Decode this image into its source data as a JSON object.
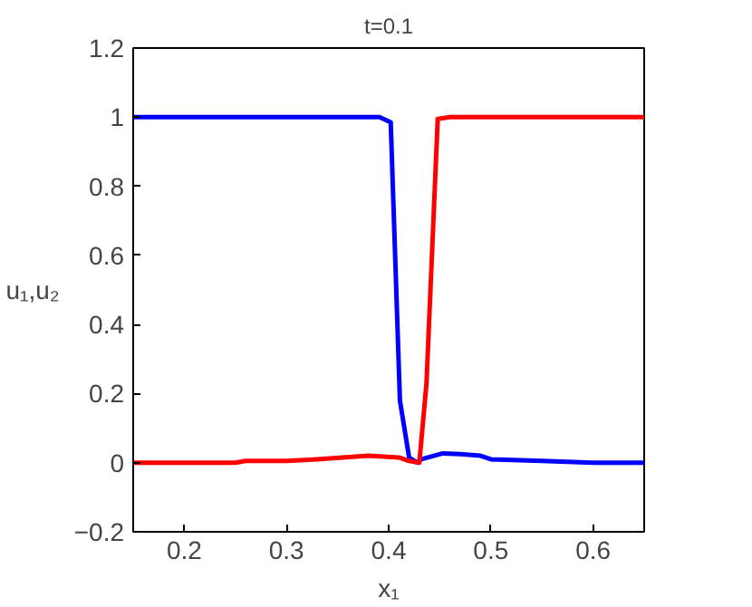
{
  "chart_data": {
    "type": "line",
    "title": "t=0.1",
    "xlabel": "x₁",
    "ylabel": "u₁,u₂",
    "xlim": [
      0.15,
      0.65
    ],
    "xticks": [
      0.2,
      0.3,
      0.4,
      0.5,
      0.6
    ],
    "ylim": [
      -0.2,
      1.2
    ],
    "yticks": [
      -0.2,
      0,
      0.2,
      0.4,
      0.6,
      0.8,
      1,
      1.2
    ],
    "grid": false,
    "line_style": "solid",
    "series": [
      {
        "color": "#0000ff",
        "x": [
          0.15,
          0.2,
          0.3,
          0.391,
          0.402,
          0.411,
          0.42,
          0.428,
          0.432,
          0.453,
          0.47,
          0.49,
          0.5,
          0.55,
          0.6,
          0.65
        ],
        "values": [
          1,
          1,
          1,
          1,
          0.985,
          0.18,
          0.015,
          0,
          0.01,
          0.027,
          0.025,
          0.02,
          0.01,
          0.005,
          0,
          0
        ]
      },
      {
        "color": "#ff0000",
        "x": [
          0.15,
          0.25,
          0.26,
          0.3,
          0.33,
          0.38,
          0.41,
          0.42,
          0.43,
          0.437,
          0.448,
          0.46,
          0.55,
          0.65
        ],
        "values": [
          0,
          0,
          0.005,
          0.005,
          0.01,
          0.02,
          0.015,
          0.005,
          0,
          0.23,
          0.995,
          1,
          1,
          1
        ]
      }
    ]
  }
}
